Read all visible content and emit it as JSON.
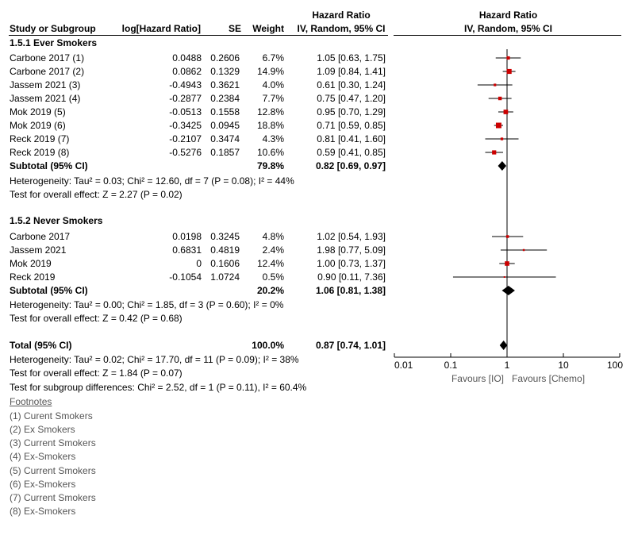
{
  "header": {
    "study": "Study or Subgroup",
    "loghr": "log[Hazard Ratio]",
    "se": "SE",
    "weight": "Weight",
    "hr_top": "Hazard Ratio",
    "hr_sub": "IV, Random, 95% CI",
    "plot_top": "Hazard Ratio",
    "plot_sub": "IV, Random, 95% CI"
  },
  "groups": [
    {
      "title": "1.5.1 Ever Smokers",
      "rows": [
        {
          "study": "Carbone 2017 (1)",
          "loghr": "0.0488",
          "se": "0.2606",
          "weight": "6.7%",
          "ci": "1.05 [0.63, 1.75]"
        },
        {
          "study": "Carbone 2017 (2)",
          "loghr": "0.0862",
          "se": "0.1329",
          "weight": "14.9%",
          "ci": "1.09 [0.84, 1.41]"
        },
        {
          "study": "Jassem 2021 (3)",
          "loghr": "-0.4943",
          "se": "0.3621",
          "weight": "4.0%",
          "ci": "0.61 [0.30, 1.24]"
        },
        {
          "study": "Jassem 2021 (4)",
          "loghr": "-0.2877",
          "se": "0.2384",
          "weight": "7.7%",
          "ci": "0.75 [0.47, 1.20]"
        },
        {
          "study": "Mok 2019 (5)",
          "loghr": "-0.0513",
          "se": "0.1558",
          "weight": "12.8%",
          "ci": "0.95 [0.70, 1.29]"
        },
        {
          "study": "Mok 2019 (6)",
          "loghr": "-0.3425",
          "se": "0.0945",
          "weight": "18.8%",
          "ci": "0.71 [0.59, 0.85]"
        },
        {
          "study": "Reck 2019 (7)",
          "loghr": "-0.2107",
          "se": "0.3474",
          "weight": "4.3%",
          "ci": "0.81 [0.41, 1.60]"
        },
        {
          "study": "Reck 2019 (8)",
          "loghr": "-0.5276",
          "se": "0.1857",
          "weight": "10.6%",
          "ci": "0.59 [0.41, 0.85]"
        }
      ],
      "subtotal": {
        "label": "Subtotal (95% CI)",
        "weight": "79.8%",
        "ci": "0.82 [0.69, 0.97]"
      },
      "heterogeneity": "Heterogeneity: Tau² = 0.03; Chi² = 12.60, df = 7 (P = 0.08); I² = 44%",
      "overall": "Test for overall effect: Z = 2.27 (P = 0.02)"
    },
    {
      "title": "1.5.2 Never Smokers",
      "rows": [
        {
          "study": "Carbone 2017",
          "loghr": "0.0198",
          "se": "0.3245",
          "weight": "4.8%",
          "ci": "1.02 [0.54, 1.93]"
        },
        {
          "study": "Jassem 2021",
          "loghr": "0.6831",
          "se": "0.4819",
          "weight": "2.4%",
          "ci": "1.98 [0.77, 5.09]"
        },
        {
          "study": "Mok 2019",
          "loghr": "0",
          "se": "0.1606",
          "weight": "12.4%",
          "ci": "1.00 [0.73, 1.37]"
        },
        {
          "study": "Reck 2019",
          "loghr": "-0.1054",
          "se": "1.0724",
          "weight": "0.5%",
          "ci": "0.90 [0.11, 7.36]"
        }
      ],
      "subtotal": {
        "label": "Subtotal (95% CI)",
        "weight": "20.2%",
        "ci": "1.06 [0.81, 1.38]"
      },
      "heterogeneity": "Heterogeneity: Tau² = 0.00; Chi² = 1.85, df = 3 (P = 0.60); I² = 0%",
      "overall": "Test for overall effect: Z = 0.42 (P = 0.68)"
    }
  ],
  "total": {
    "label": "Total (95% CI)",
    "weight": "100.0%",
    "ci": "0.87 [0.74, 1.01]",
    "heterogeneity": "Heterogeneity: Tau² = 0.02; Chi² = 17.70, df = 11 (P = 0.09); I² = 38%",
    "overall": "Test for overall effect: Z = 1.84 (P = 0.07)",
    "subgroup": "Test for subgroup differences: Chi² = 2.52, df = 1 (P = 0.11), I² = 60.4%"
  },
  "footnotes": {
    "heading": "Footnotes",
    "items": [
      "(1) Curent Smokers",
      "(2) Ex Smokers",
      "(3) Current Smokers",
      "(4) Ex-Smokers",
      "(5) Current Smokers",
      "(6) Ex-Smokers",
      "(7) Current Smokers",
      "(8) Ex-Smokers"
    ]
  },
  "axis": {
    "favours_left": "Favours [IO]",
    "favours_right": "Favours [Chemo]"
  },
  "colors": {
    "study_square": "#cc0000",
    "diamond": "#000000",
    "line": "#000000"
  },
  "chart_data": {
    "type": "forest",
    "scale": "log",
    "xlim": [
      0.01,
      100
    ],
    "ticks": [
      0.01,
      0.1,
      1,
      10,
      100
    ],
    "tick_labels": [
      "0.01",
      "0.1",
      "1",
      "10",
      "100"
    ],
    "reference_line": 1,
    "studies": [
      {
        "group": "1.5.1 Ever Smokers",
        "study": "Carbone 2017 (1)",
        "hr": 1.05,
        "lo": 0.63,
        "hi": 1.75,
        "weight": 6.7
      },
      {
        "group": "1.5.1 Ever Smokers",
        "study": "Carbone 2017 (2)",
        "hr": 1.09,
        "lo": 0.84,
        "hi": 1.41,
        "weight": 14.9
      },
      {
        "group": "1.5.1 Ever Smokers",
        "study": "Jassem 2021 (3)",
        "hr": 0.61,
        "lo": 0.3,
        "hi": 1.24,
        "weight": 4.0
      },
      {
        "group": "1.5.1 Ever Smokers",
        "study": "Jassem 2021 (4)",
        "hr": 0.75,
        "lo": 0.47,
        "hi": 1.2,
        "weight": 7.7
      },
      {
        "group": "1.5.1 Ever Smokers",
        "study": "Mok 2019 (5)",
        "hr": 0.95,
        "lo": 0.7,
        "hi": 1.29,
        "weight": 12.8
      },
      {
        "group": "1.5.1 Ever Smokers",
        "study": "Mok 2019 (6)",
        "hr": 0.71,
        "lo": 0.59,
        "hi": 0.85,
        "weight": 18.8
      },
      {
        "group": "1.5.1 Ever Smokers",
        "study": "Reck 2019 (7)",
        "hr": 0.81,
        "lo": 0.41,
        "hi": 1.6,
        "weight": 4.3
      },
      {
        "group": "1.5.1 Ever Smokers",
        "study": "Reck 2019 (8)",
        "hr": 0.59,
        "lo": 0.41,
        "hi": 0.85,
        "weight": 10.6
      },
      {
        "group": "1.5.2 Never Smokers",
        "study": "Carbone 2017",
        "hr": 1.02,
        "lo": 0.54,
        "hi": 1.93,
        "weight": 4.8
      },
      {
        "group": "1.5.2 Never Smokers",
        "study": "Jassem 2021",
        "hr": 1.98,
        "lo": 0.77,
        "hi": 5.09,
        "weight": 2.4
      },
      {
        "group": "1.5.2 Never Smokers",
        "study": "Mok 2019",
        "hr": 1.0,
        "lo": 0.73,
        "hi": 1.37,
        "weight": 12.4
      },
      {
        "group": "1.5.2 Never Smokers",
        "study": "Reck 2019",
        "hr": 0.9,
        "lo": 0.11,
        "hi": 7.36,
        "weight": 0.5
      }
    ],
    "pooled": [
      {
        "label": "Subtotal (95% CI)",
        "group": "1.5.1 Ever Smokers",
        "hr": 0.82,
        "lo": 0.69,
        "hi": 0.97
      },
      {
        "label": "Subtotal (95% CI)",
        "group": "1.5.2 Never Smokers",
        "hr": 1.06,
        "lo": 0.81,
        "hi": 1.38
      },
      {
        "label": "Total (95% CI)",
        "group": "",
        "hr": 0.87,
        "lo": 0.74,
        "hi": 1.01
      }
    ]
  }
}
